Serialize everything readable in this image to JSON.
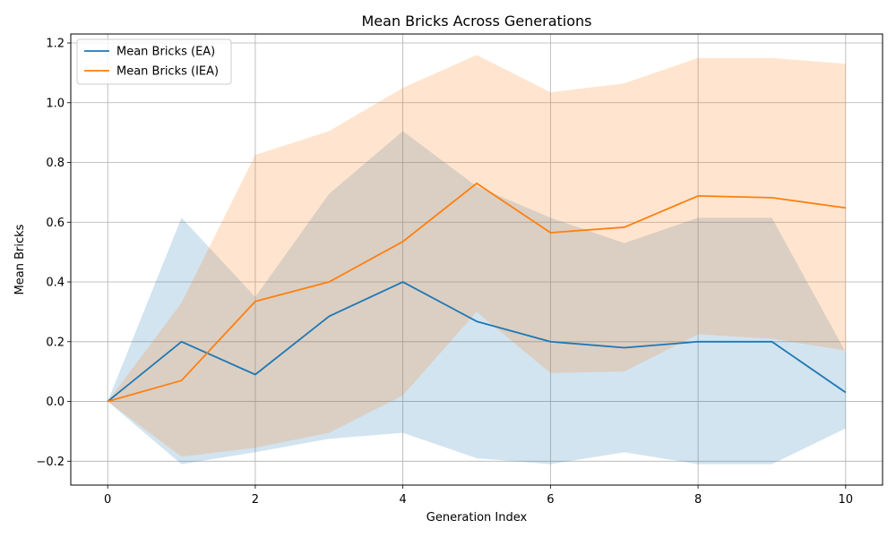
{
  "chart_data": {
    "type": "line",
    "title": "Mean Bricks Across Generations",
    "xlabel": "Generation Index",
    "ylabel": "Mean Bricks",
    "xlim": [
      -0.5,
      10.5
    ],
    "ylim": [
      -0.28,
      1.23
    ],
    "xticks": [
      0,
      2,
      4,
      6,
      8,
      10
    ],
    "yticks": [
      -0.2,
      0.0,
      0.2,
      0.4,
      0.6,
      0.8,
      1.0,
      1.2
    ],
    "xtick_labels": [
      "0",
      "2",
      "4",
      "6",
      "8",
      "10"
    ],
    "ytick_labels": [
      "−0.2",
      "0.0",
      "0.2",
      "0.4",
      "0.6",
      "0.8",
      "1.0",
      "1.2"
    ],
    "grid": true,
    "legend_position": "top-left",
    "x": [
      0,
      1,
      2,
      3,
      4,
      5,
      6,
      7,
      8,
      9,
      10
    ],
    "series": [
      {
        "name": "Mean Bricks (EA)",
        "color": "#1f77b4",
        "values": [
          0.0,
          0.2,
          0.09,
          0.285,
          0.4,
          0.268,
          0.2,
          0.18,
          0.2,
          0.2,
          0.03
        ],
        "band_lower": [
          0.0,
          -0.21,
          -0.17,
          -0.125,
          -0.105,
          -0.19,
          -0.21,
          -0.17,
          -0.21,
          -0.21,
          -0.09
        ],
        "band_upper": [
          0.0,
          0.615,
          0.35,
          0.695,
          0.905,
          0.72,
          0.615,
          0.53,
          0.615,
          0.615,
          0.165
        ]
      },
      {
        "name": "Mean Bricks (IEA)",
        "color": "#ff7f0e",
        "values": [
          0.0,
          0.07,
          0.335,
          0.4,
          0.535,
          0.73,
          0.565,
          0.583,
          0.688,
          0.682,
          0.648
        ],
        "band_lower": [
          0.0,
          -0.185,
          -0.155,
          -0.105,
          0.02,
          0.3,
          0.095,
          0.1,
          0.225,
          0.21,
          0.17
        ],
        "band_upper": [
          0.0,
          0.33,
          0.825,
          0.905,
          1.05,
          1.16,
          1.035,
          1.065,
          1.15,
          1.15,
          1.13
        ]
      }
    ]
  }
}
